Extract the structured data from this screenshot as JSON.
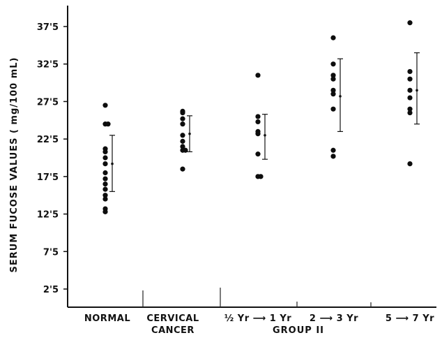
{
  "chart_data": {
    "type": "scatter",
    "ylabel": "SERUM FUCOSE VALUES ( mg/100 mL)",
    "yticks": [
      "2'5",
      "7'5",
      "12'5",
      "17'5",
      "22'5",
      "27'5",
      "32'5",
      "37'5"
    ],
    "ytick_values": [
      2.5,
      7.5,
      12.5,
      17.5,
      22.5,
      27.5,
      32.5,
      37.5
    ],
    "ylim": [
      0,
      40
    ],
    "grid": false,
    "group_label": "GROUP II",
    "categories": [
      {
        "label_lines": [
          "NORMAL"
        ],
        "points": [
          27.0,
          24.5,
          24.5,
          21.2,
          20.8,
          20.0,
          19.2,
          18.0,
          17.2,
          16.5,
          15.8,
          15.0,
          14.5,
          13.2,
          12.8
        ],
        "mean": 19.2,
        "sd_low": 15.5,
        "sd_high": 23.0
      },
      {
        "label_lines": [
          "CERVICAL",
          "CANCER"
        ],
        "points": [
          26.2,
          26.0,
          25.2,
          24.5,
          23.0,
          22.2,
          21.5,
          21.0,
          21.0,
          18.5
        ],
        "mean": 23.2,
        "sd_low": 20.8,
        "sd_high": 25.6
      },
      {
        "label_lines": [
          "½ Yr ⟶ 1 Yr"
        ],
        "points": [
          31.0,
          25.5,
          24.8,
          23.5,
          23.2,
          20.5,
          17.5,
          17.5
        ],
        "mean": 23.0,
        "sd_low": 19.8,
        "sd_high": 25.8
      },
      {
        "label_lines": [
          "2 ⟶ 3 Yr"
        ],
        "points": [
          36.0,
          32.5,
          31.0,
          30.5,
          29.0,
          28.5,
          26.5,
          21.0,
          20.2
        ],
        "mean": 28.2,
        "sd_low": 23.5,
        "sd_high": 33.2
      },
      {
        "label_lines": [
          "5 ⟶ 7 Yr"
        ],
        "points": [
          38.0,
          31.5,
          30.5,
          29.0,
          28.0,
          26.5,
          26.0,
          19.2
        ],
        "mean": 29.0,
        "sd_low": 24.5,
        "sd_high": 34.0
      }
    ]
  }
}
